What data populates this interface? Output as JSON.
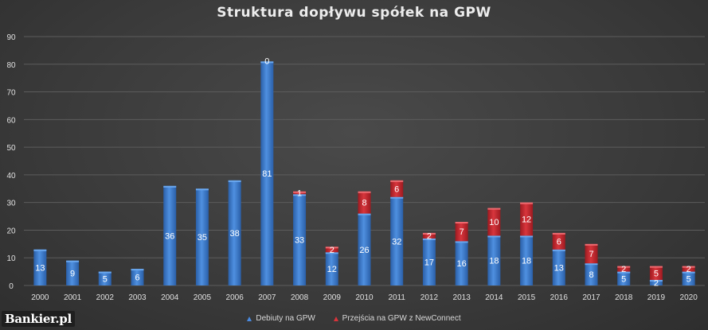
{
  "chart_data": {
    "type": "bar",
    "stacked": true,
    "title": "Struktura dopływu spółek na GPW",
    "categories": [
      "2000",
      "2001",
      "2002",
      "2003",
      "2004",
      "2005",
      "2006",
      "2007",
      "2008",
      "2009",
      "2010",
      "2011",
      "2012",
      "2013",
      "2014",
      "2015",
      "2016",
      "2017",
      "2018",
      "2019",
      "2020"
    ],
    "series": [
      {
        "name": "Debiuty na GPW",
        "color": "#3a78c8",
        "values": [
          13,
          9,
          5,
          6,
          36,
          35,
          38,
          81,
          33,
          12,
          26,
          32,
          17,
          16,
          18,
          18,
          13,
          8,
          5,
          2,
          5
        ],
        "labels": [
          "13",
          "9",
          "5",
          "6",
          "36",
          "35",
          "38",
          "81",
          "33",
          "12",
          "26",
          "32",
          "17",
          "16",
          "18",
          "18",
          "13",
          "8",
          "5",
          "2",
          "5"
        ]
      },
      {
        "name": "Przejścia na GPW z NewConnect",
        "color": "#c8262d",
        "values": [
          0,
          0,
          0,
          0,
          0,
          0,
          0,
          0,
          1,
          2,
          8,
          6,
          2,
          7,
          10,
          12,
          6,
          7,
          2,
          5,
          2
        ],
        "labels": [
          "",
          "",
          "",
          "",
          "",
          "",
          "",
          "0",
          "1",
          "2",
          "8",
          "6",
          "2",
          "7",
          "10",
          "12",
          "6",
          "7",
          "2",
          "5",
          "2"
        ]
      }
    ],
    "yticks": [
      "0",
      "10",
      "20",
      "30",
      "40",
      "50",
      "60",
      "70",
      "80",
      "90"
    ],
    "ylim": [
      0,
      90
    ],
    "grid": true,
    "legend_position": "bottom"
  },
  "logo_text": "Bankier.pl"
}
